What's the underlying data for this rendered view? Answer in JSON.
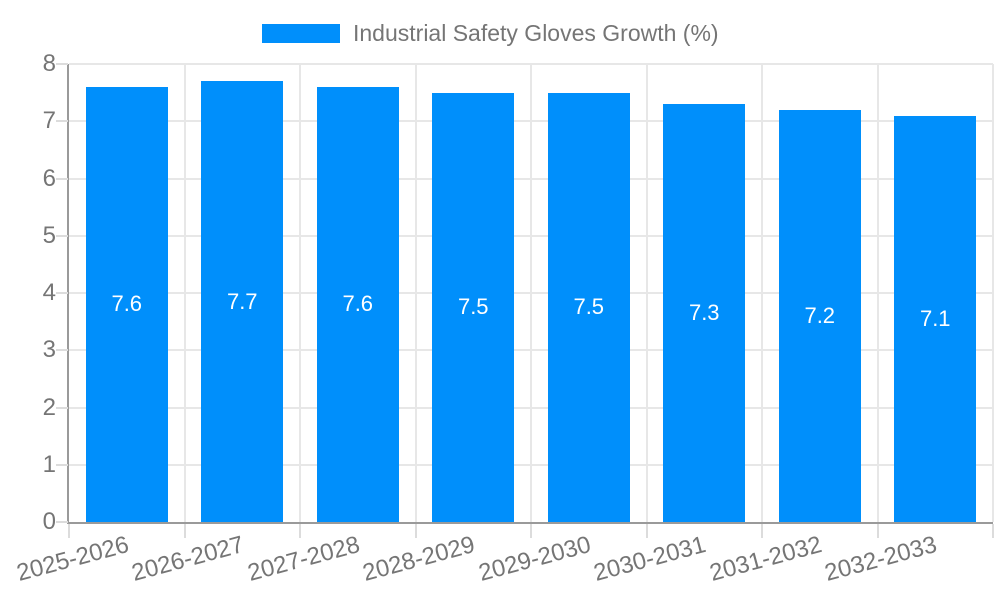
{
  "legend": {
    "label": "Industrial Safety Gloves Growth (%)"
  },
  "colors": {
    "bar": "#008FFB",
    "grid": "#e7e7e7",
    "axis": "#9a9a9a",
    "tick_text": "#757575",
    "value_label_text": "#ffffff"
  },
  "chart_data": {
    "type": "bar",
    "title": "Industrial Safety Gloves Growth (%)",
    "categories": [
      "2025-2026",
      "2026-2027",
      "2027-2028",
      "2028-2029",
      "2029-2030",
      "2030-2031",
      "2031-2032",
      "2032-2033"
    ],
    "values": [
      7.6,
      7.7,
      7.6,
      7.5,
      7.5,
      7.3,
      7.2,
      7.1
    ],
    "xlabel": "",
    "ylabel": "",
    "ylim": [
      0,
      8
    ],
    "yticks": [
      0,
      1,
      2,
      3,
      4,
      5,
      6,
      7,
      8
    ],
    "grid": true,
    "legend_position": "top",
    "value_label_decimals": 1
  }
}
